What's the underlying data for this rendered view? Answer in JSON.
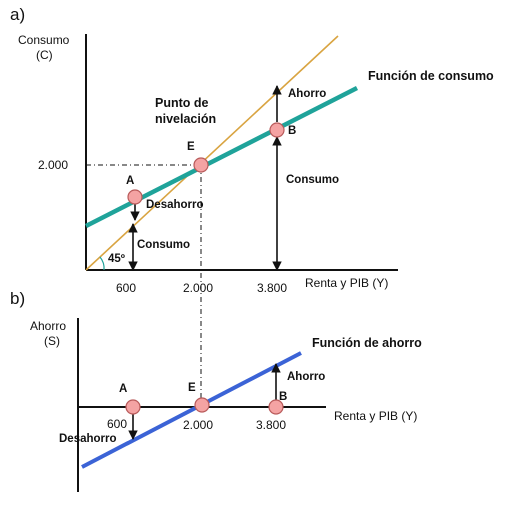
{
  "panel_a": {
    "tag": "a)",
    "y_axis_title_1": "Consumo",
    "y_axis_title_2": "(C)",
    "x_axis_title": "Renta y PIB (Y)",
    "y_tick": "2.000",
    "x_ticks": [
      "600",
      "2.000",
      "3.800"
    ],
    "curve_label": "Función de consumo",
    "break_even_1": "Punto de",
    "break_even_2": "nivelación",
    "angle": "45º",
    "points": [
      "A",
      "E",
      "B"
    ],
    "arrow_labels": {
      "ahorro": "Ahorro",
      "consumo_b": "Consumo",
      "desahorro": "Desahorro",
      "consumo_a": "Consumo"
    },
    "colors": {
      "consumption_line": "#1fa39a",
      "guide_45": "#d9a441",
      "point_fill": "#f4a3a3",
      "point_stroke": "#b85a5a"
    }
  },
  "panel_b": {
    "tag": "b)",
    "y_axis_title_1": "Ahorro",
    "y_axis_title_2": "(S)",
    "x_axis_title": "Renta y PIB (Y)",
    "x_ticks": [
      "600",
      "2.000",
      "3.800"
    ],
    "curve_label": "Función de ahorro",
    "points": [
      "A",
      "E",
      "B"
    ],
    "arrow_labels": {
      "ahorro": "Ahorro",
      "desahorro": "Desahorro"
    },
    "colors": {
      "saving_line": "#3b63d6"
    }
  }
}
